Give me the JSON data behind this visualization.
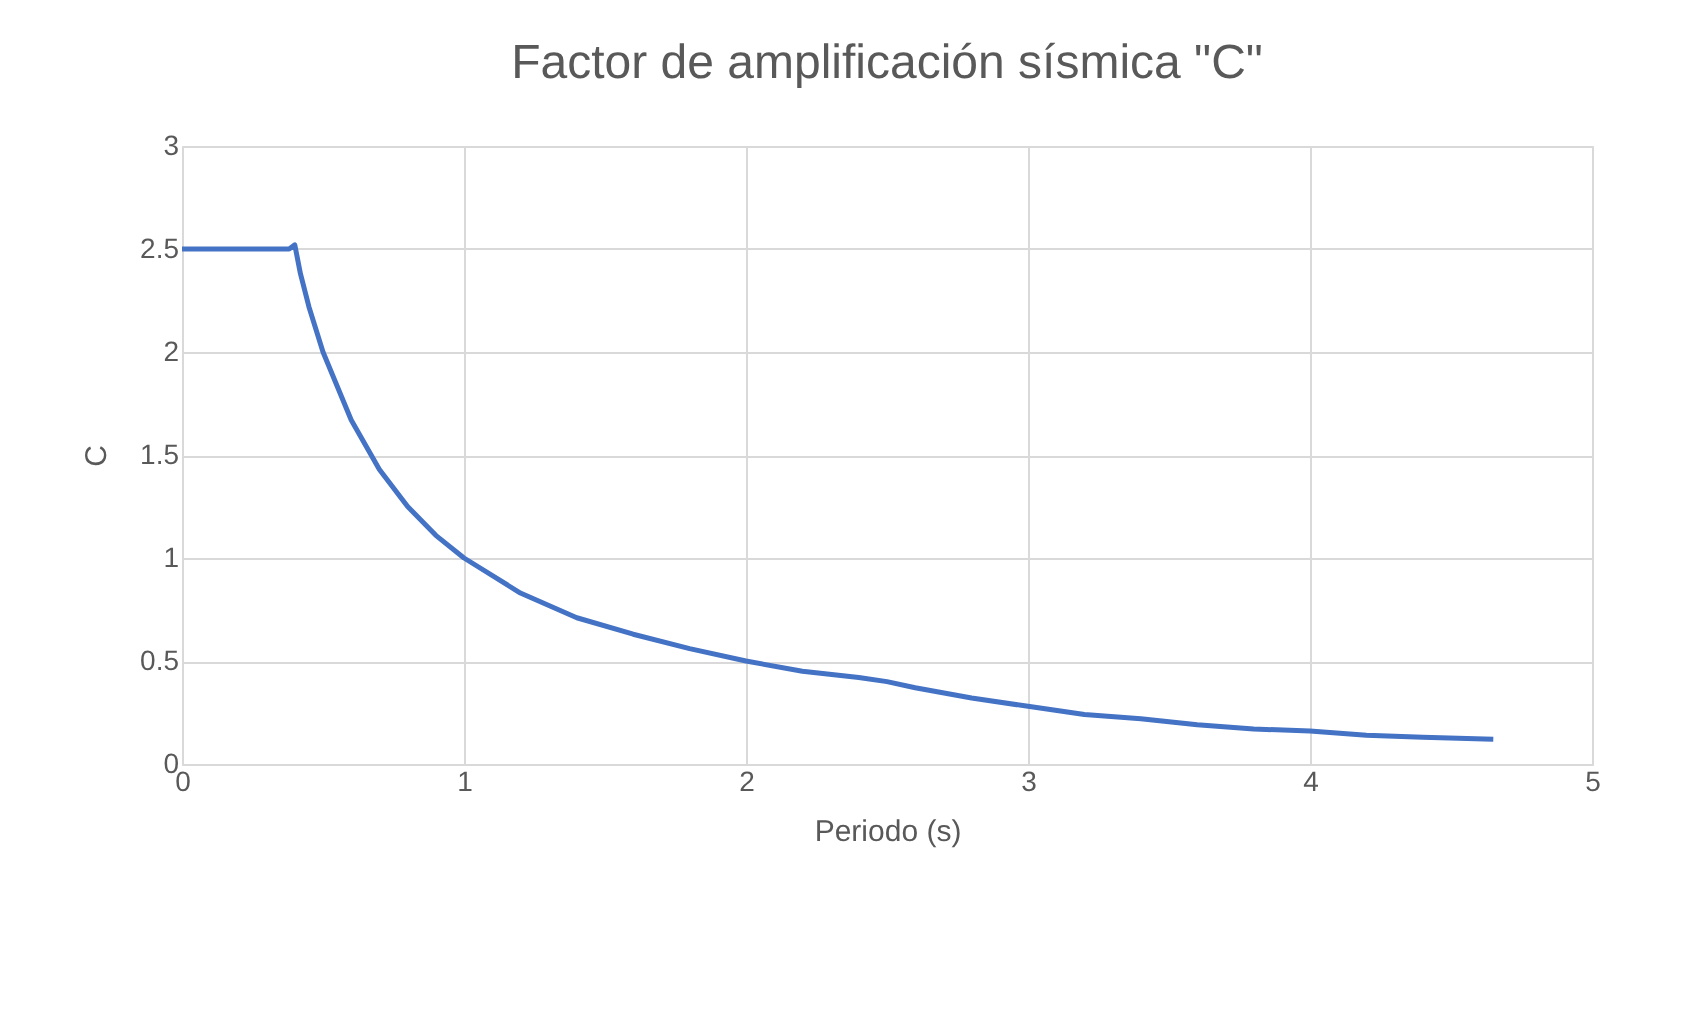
{
  "chart_data": {
    "type": "line",
    "title": "Factor de amplificación sísmica \"C\"",
    "xlabel": "Periodo (s)",
    "ylabel": "C",
    "x": [
      0,
      0.1,
      0.2,
      0.3,
      0.38,
      0.4,
      0.42,
      0.45,
      0.5,
      0.6,
      0.7,
      0.8,
      0.9,
      1.0,
      1.2,
      1.4,
      1.6,
      1.8,
      2.0,
      2.2,
      2.4,
      2.5,
      2.6,
      2.8,
      3.0,
      3.2,
      3.4,
      3.6,
      3.8,
      4.0,
      4.2,
      4.4,
      4.65
    ],
    "series": [
      {
        "color": "#4472c4",
        "values": [
          2.5,
          2.5,
          2.5,
          2.5,
          2.5,
          2.52,
          2.38,
          2.22,
          2.0,
          1.67,
          1.43,
          1.25,
          1.11,
          1.0,
          0.83,
          0.71,
          0.63,
          0.56,
          0.5,
          0.45,
          0.42,
          0.4,
          0.37,
          0.32,
          0.28,
          0.24,
          0.22,
          0.19,
          0.17,
          0.16,
          0.14,
          0.13,
          0.12
        ]
      }
    ],
    "xlim": [
      0,
      5
    ],
    "xticks": [
      0,
      1,
      2,
      3,
      4,
      5
    ],
    "ylim": [
      0,
      3
    ],
    "yticks": [
      0,
      0.5,
      1,
      1.5,
      2,
      2.5,
      3
    ],
    "grid": true,
    "marker": "none",
    "line_style": "solid"
  }
}
